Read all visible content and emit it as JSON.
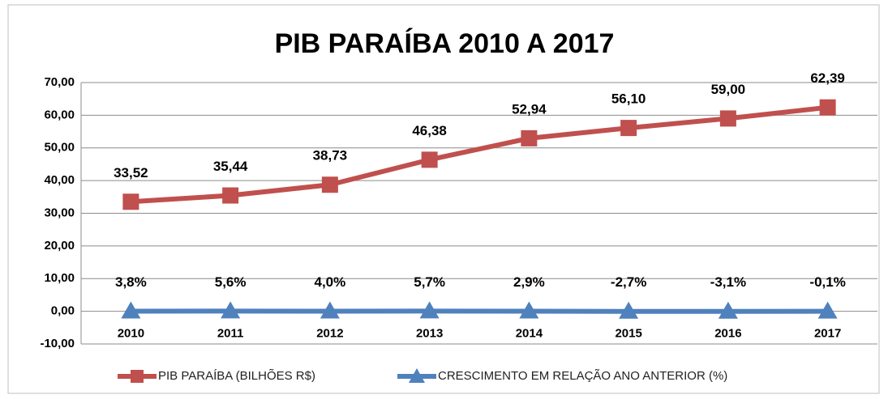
{
  "chart_data": {
    "type": "line",
    "title": "PIB PARAÍBA 2010 A 2017",
    "categories": [
      "2010",
      "2011",
      "2012",
      "2013",
      "2014",
      "2015",
      "2016",
      "2017"
    ],
    "series": [
      {
        "name": "PIB PARAÍBA (BILHÕES R$)",
        "color": "#c0504d",
        "values": [
          33.52,
          35.44,
          38.73,
          46.38,
          52.94,
          56.1,
          59.0,
          62.39
        ],
        "value_labels": [
          "33,52",
          "35,44",
          "38,73",
          "46,38",
          "52,94",
          "56,10",
          "59,00",
          "62,39"
        ]
      },
      {
        "name": "CRESCIMENTO EM RELAÇÃO ANO ANTERIOR (%)",
        "color": "#4f81bd",
        "values": [
          0.038,
          0.056,
          0.04,
          0.057,
          0.029,
          -0.027,
          -0.031,
          -0.001
        ],
        "value_labels": [
          "3,8%",
          "5,6%",
          "4,0%",
          "5,7%",
          "2,9%",
          "-2,7%",
          "-3,1%",
          "-0,1%"
        ]
      }
    ],
    "ylim": [
      -10,
      70
    ],
    "yticks": [
      {
        "value": -10,
        "label": "-10,00"
      },
      {
        "value": 0,
        "label": "0,00"
      },
      {
        "value": 10,
        "label": "10,00"
      },
      {
        "value": 20,
        "label": "20,00"
      },
      {
        "value": 30,
        "label": "30,00"
      },
      {
        "value": 40,
        "label": "40,00"
      },
      {
        "value": 50,
        "label": "50,00"
      },
      {
        "value": 60,
        "label": "60,00"
      },
      {
        "value": 70,
        "label": "70,00"
      }
    ],
    "grid": true
  }
}
